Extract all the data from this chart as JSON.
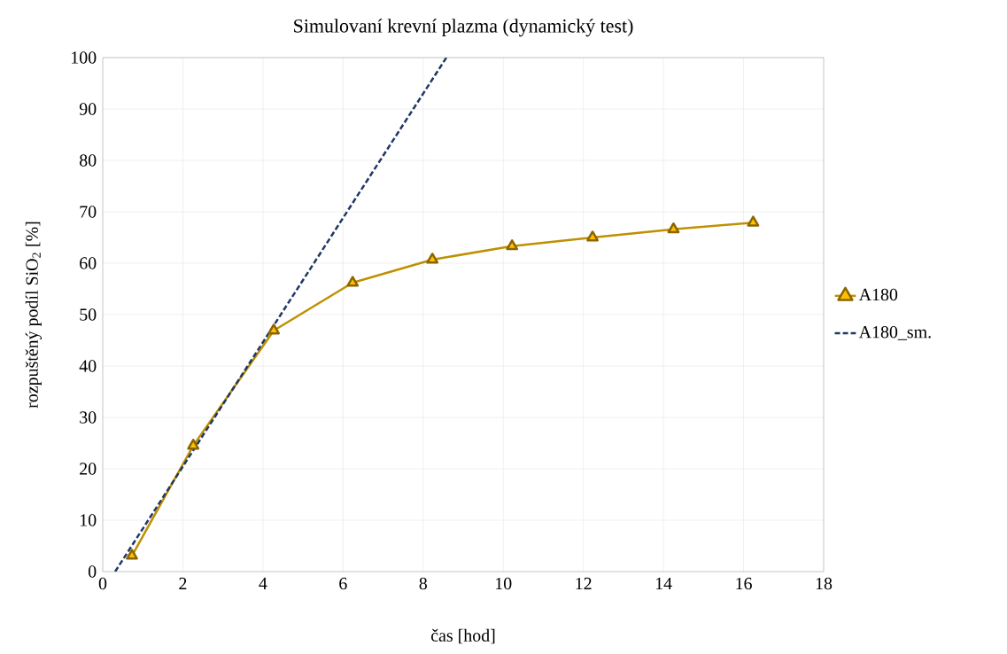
{
  "chart_data": {
    "type": "line",
    "title": "Simulovaní krevní plazma (dynamický test)",
    "xlabel": "čas  [hod]",
    "ylabel": "rozpuštěný podíl SiO$_{2}$  [%]",
    "xlim": [
      0,
      18
    ],
    "xticks": [
      0,
      2,
      4,
      6,
      8,
      10,
      12,
      14,
      16,
      18
    ],
    "ylim": [
      0,
      100
    ],
    "yticks": [
      0,
      10,
      20,
      30,
      40,
      50,
      60,
      70,
      80,
      90,
      100
    ],
    "grid": true,
    "legend": "right",
    "series": [
      {
        "name": "A180",
        "color": "#bf9000",
        "marker": "triangle",
        "line_style": "solid",
        "x": [
          0.73,
          2.26,
          4.27,
          6.24,
          8.23,
          10.22,
          12.23,
          14.25,
          16.24
        ],
        "values": [
          3.1,
          24.5,
          46.9,
          56.2,
          60.7,
          63.3,
          65.0,
          66.6,
          67.9
        ]
      },
      {
        "name": "A180_sm.",
        "color": "#1f3864",
        "marker": "none",
        "line_style": "dashed",
        "x": [
          0.31,
          8.58
        ],
        "values": [
          0,
          100
        ]
      }
    ]
  }
}
